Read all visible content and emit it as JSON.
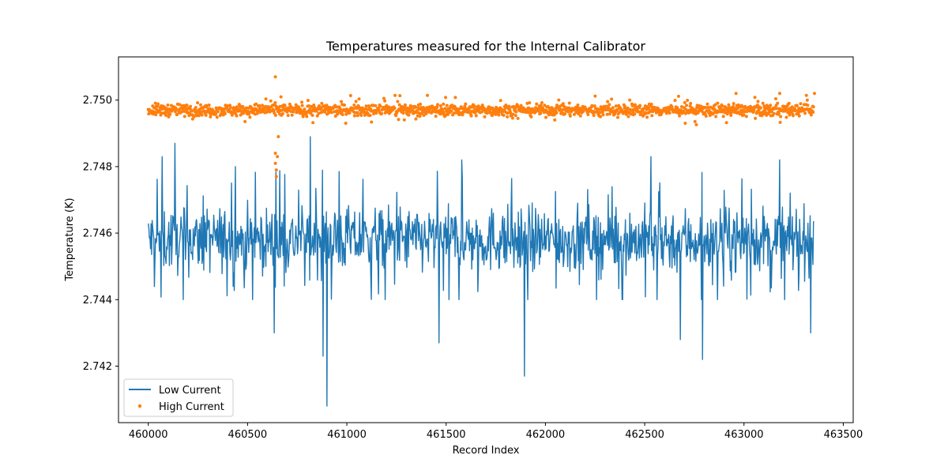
{
  "chart_data": {
    "type": "line",
    "title": "Temperatures measured for the Internal Calibrator",
    "xlabel": "Record Index",
    "ylabel": "Temperature (K)",
    "xlim": [
      459850,
      463550
    ],
    "ylim": [
      2.7403,
      2.7513
    ],
    "xticks": [
      460000,
      460500,
      461000,
      461500,
      462000,
      462500,
      463000,
      463500
    ],
    "yticks": [
      2.742,
      2.744,
      2.746,
      2.748,
      2.75
    ],
    "ytick_labels": [
      "2.742",
      "2.744",
      "2.746",
      "2.748",
      "2.750"
    ],
    "legend_position": "lower-left",
    "series": [
      {
        "name": "Low Current",
        "style": "line",
        "color": "#1f77b4",
        "x_start": 460000,
        "x_end": 463350,
        "baseline": 2.7458,
        "typical_range": [
          2.7448,
          2.7469
        ],
        "spikes": [
          {
            "x": 460070,
            "y": 2.7483
          },
          {
            "x": 460135,
            "y": 2.7487
          },
          {
            "x": 460440,
            "y": 2.748
          },
          {
            "x": 460635,
            "y": 2.743
          },
          {
            "x": 460815,
            "y": 2.7489
          },
          {
            "x": 460880,
            "y": 2.7423
          },
          {
            "x": 460900,
            "y": 2.7408
          },
          {
            "x": 461465,
            "y": 2.7427
          },
          {
            "x": 461580,
            "y": 2.7482
          },
          {
            "x": 461895,
            "y": 2.7417
          },
          {
            "x": 462530,
            "y": 2.7483
          },
          {
            "x": 462680,
            "y": 2.7428
          },
          {
            "x": 462790,
            "y": 2.7422
          },
          {
            "x": 463180,
            "y": 2.7482
          },
          {
            "x": 463335,
            "y": 2.743
          }
        ]
      },
      {
        "name": "High Current",
        "style": "scatter",
        "color": "#ff7f0e",
        "x_start": 460000,
        "x_end": 463350,
        "baseline": 2.7497,
        "typical_range": [
          2.7494,
          2.75
        ],
        "outliers": [
          {
            "x": 460640,
            "y": 2.7507
          },
          {
            "x": 460640,
            "y": 2.7484
          },
          {
            "x": 460640,
            "y": 2.7481
          },
          {
            "x": 460645,
            "y": 2.7479
          },
          {
            "x": 460645,
            "y": 2.7477
          },
          {
            "x": 460650,
            "y": 2.7483
          },
          {
            "x": 460655,
            "y": 2.7489
          },
          {
            "x": 462960,
            "y": 2.7502
          },
          {
            "x": 463180,
            "y": 2.7502
          },
          {
            "x": 463355,
            "y": 2.7502
          }
        ]
      }
    ]
  }
}
